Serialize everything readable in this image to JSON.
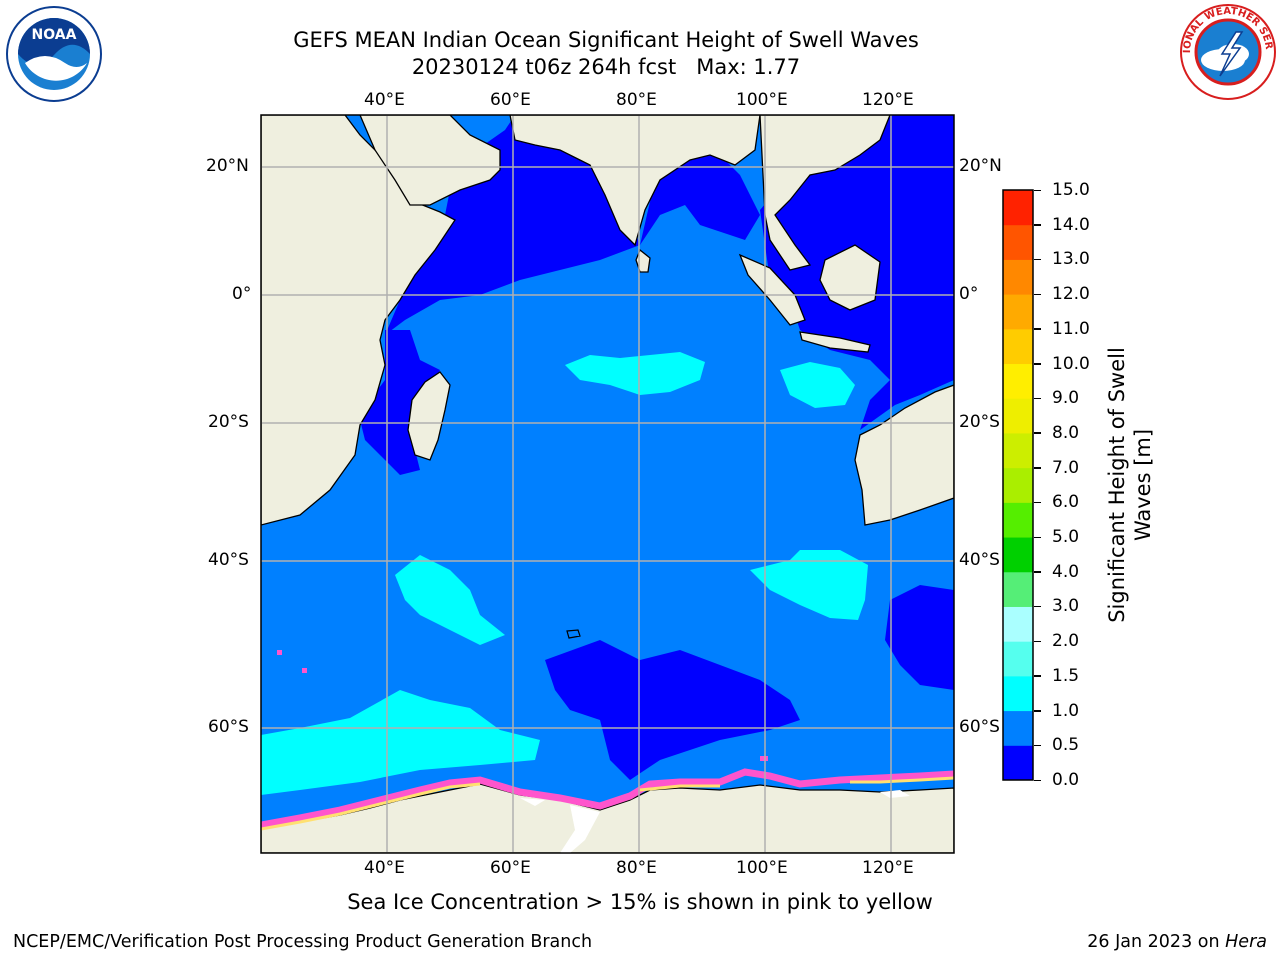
{
  "title": {
    "line1": "GEFS MEAN Indian Ocean Significant Height of Swell Waves",
    "line2": "20230124 t06z 264h fcst   Max: 1.77"
  },
  "logos": {
    "left": {
      "icon": "noaa-logo-icon",
      "text": "NOAA",
      "color": "#1a7fd1"
    },
    "right": {
      "icon": "nws-logo-icon",
      "text": "NATIONAL WEATHER SERVICE",
      "color": "#d81e1e"
    }
  },
  "map": {
    "lon_ticks": [
      "40°E",
      "60°E",
      "80°E",
      "100°E",
      "120°E"
    ],
    "lat_ticks": [
      "20°N",
      "0°",
      "20°S",
      "40°S",
      "60°S"
    ],
    "colors": {
      "land": "#efefdf",
      "ice_land": "#ffffff",
      "sea_ice_pink": "#ff55cc",
      "sea_ice_yellow": "#ffe070",
      "grid": "#b0b0b0"
    }
  },
  "colorbar": {
    "title_line1": "Significant Height of Swell",
    "title_line2": "Waves [m]",
    "labels": [
      "15.0",
      "14.0",
      "13.0",
      "12.0",
      "11.0",
      "10.0",
      "9.0",
      "8.0",
      "7.0",
      "6.0",
      "5.0",
      "4.0",
      "3.0",
      "2.0",
      "1.5",
      "1.0",
      "0.5",
      "0.0"
    ],
    "colors_bottom_to_top": [
      "#0000ff",
      "#0080ff",
      "#00ffff",
      "#55ffee",
      "#aaffff",
      "#55ee77",
      "#00d000",
      "#55ee00",
      "#aaee00",
      "#ccee00",
      "#eeee00",
      "#ffee00",
      "#ffcc00",
      "#ffaa00",
      "#ff8800",
      "#ff5500",
      "#ff2200"
    ]
  },
  "caption": "Sea Ice Concentration > 15% is shown in pink to yellow",
  "footer": {
    "left": "NCEP/EMC/Verification Post Processing Product Generation Branch",
    "right_prefix": "26 Jan 2023 on ",
    "right_host": "Hera"
  }
}
